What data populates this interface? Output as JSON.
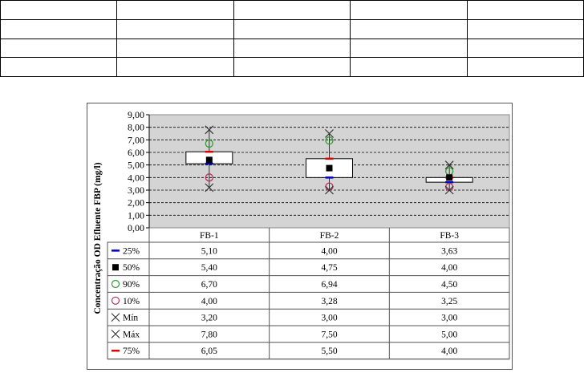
{
  "chart_data": {
    "type": "box",
    "ylabel": "Concentração OD Efluente FBP (mg/l)",
    "ylim": [
      0,
      9
    ],
    "yticks": [
      "0,00",
      "1,00",
      "2,00",
      "3,00",
      "4,00",
      "5,00",
      "6,00",
      "7,00",
      "8,00",
      "9,00"
    ],
    "grid": true,
    "categories": [
      "FB-1",
      "FB-2",
      "FB-3"
    ],
    "series": [
      {
        "name": "25%",
        "key": "p25",
        "color": "#0000cc",
        "marker": "dash",
        "values": [
          5.1,
          4.0,
          3.63
        ],
        "labels": [
          "5,10",
          "4,00",
          "3,63"
        ]
      },
      {
        "name": "50%",
        "key": "p50",
        "color": "#000000",
        "marker": "square",
        "values": [
          5.4,
          4.75,
          4.0
        ],
        "labels": [
          "5,40",
          "4,75",
          "4,00"
        ]
      },
      {
        "name": "90%",
        "key": "p90",
        "color": "#2e9e2e",
        "marker": "circle",
        "values": [
          6.7,
          6.94,
          4.5
        ],
        "labels": [
          "6,70",
          "6,94",
          "4,50"
        ]
      },
      {
        "name": "10%",
        "key": "p10",
        "color": "#b0305a",
        "marker": "circle",
        "values": [
          4.0,
          3.28,
          3.25
        ],
        "labels": [
          "4,00",
          "3,28",
          "3,25"
        ]
      },
      {
        "name": "Mín",
        "key": "min",
        "color": "#333333",
        "marker": "x",
        "values": [
          3.2,
          3.0,
          3.0
        ],
        "labels": [
          "3,20",
          "3,00",
          "3,00"
        ]
      },
      {
        "name": "Máx",
        "key": "max",
        "color": "#333333",
        "marker": "x",
        "values": [
          7.8,
          7.5,
          5.0
        ],
        "labels": [
          "7,80",
          "7,50",
          "5,00"
        ]
      },
      {
        "name": "75%",
        "key": "p75",
        "color": "#dd0000",
        "marker": "dash",
        "values": [
          6.05,
          5.5,
          4.0
        ],
        "labels": [
          "6,05",
          "5,50",
          "4,00"
        ]
      }
    ]
  }
}
